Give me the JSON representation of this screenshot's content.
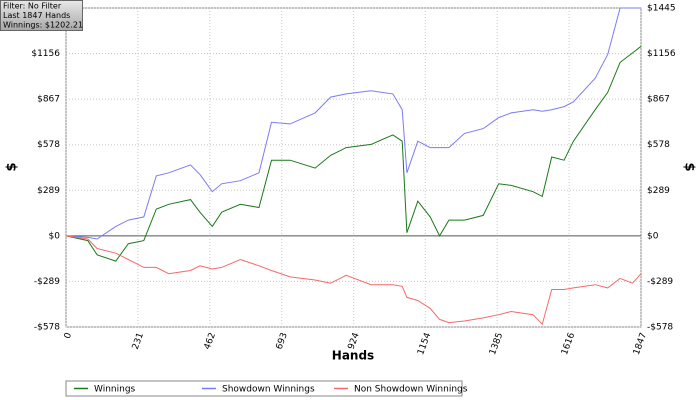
{
  "chart_data": {
    "type": "line",
    "info_box": [
      "Filter: No Filter",
      "Last  1847 Hands",
      "Winnings: $1202.21"
    ],
    "xlabel": "Hands",
    "ylabel": "$",
    "x": [
      0,
      70,
      100,
      160,
      200,
      250,
      290,
      330,
      400,
      430,
      470,
      500,
      560,
      620,
      660,
      720,
      800,
      850,
      900,
      980,
      1050,
      1080,
      1095,
      1130,
      1170,
      1200,
      1230,
      1280,
      1340,
      1390,
      1430,
      1500,
      1530,
      1560,
      1600,
      1630,
      1700,
      1740,
      1780,
      1820,
      1847
    ],
    "series": [
      {
        "name": "Winnings",
        "color": "#1a7a1a",
        "values": [
          0,
          -30,
          -120,
          -160,
          -50,
          -30,
          170,
          200,
          230,
          150,
          60,
          150,
          200,
          180,
          480,
          480,
          430,
          510,
          560,
          580,
          640,
          600,
          20,
          220,
          120,
          0,
          100,
          100,
          130,
          330,
          320,
          280,
          250,
          500,
          480,
          600,
          800,
          910,
          1100,
          1160,
          1202
        ]
      },
      {
        "name": "Showdown Winnings",
        "color": "#7b7bf5",
        "values": [
          0,
          -10,
          -20,
          60,
          100,
          120,
          380,
          400,
          450,
          390,
          280,
          330,
          350,
          400,
          720,
          710,
          780,
          880,
          900,
          920,
          900,
          800,
          400,
          600,
          560,
          560,
          560,
          650,
          680,
          750,
          780,
          800,
          790,
          800,
          820,
          850,
          1000,
          1150,
          1445,
          1445,
          1445
        ]
      },
      {
        "name": "Non Showdown Winnings",
        "color": "#f56a6a",
        "values": [
          0,
          -20,
          -80,
          -110,
          -150,
          -200,
          -200,
          -240,
          -220,
          -190,
          -210,
          -200,
          -150,
          -190,
          -220,
          -260,
          -280,
          -300,
          -250,
          -310,
          -310,
          -320,
          -390,
          -410,
          -460,
          -530,
          -550,
          -540,
          -520,
          -500,
          -480,
          -500,
          -560,
          -340,
          -340,
          -330,
          -310,
          -330,
          -270,
          -300,
          -240
        ]
      }
    ],
    "xlim": [
      0,
      1847
    ],
    "xticks": [
      0,
      231,
      462,
      693,
      924,
      1154,
      1385,
      1616,
      1847
    ],
    "ylim": [
      -578,
      1445
    ],
    "yticks": [
      {
        "value": -578,
        "label": "-$578"
      },
      {
        "value": -289,
        "label": "-$289"
      },
      {
        "value": 0,
        "label": "$0"
      },
      {
        "value": 289,
        "label": "$289"
      },
      {
        "value": 578,
        "label": "$578"
      },
      {
        "value": 867,
        "label": "$867"
      },
      {
        "value": 1156,
        "label": "$1156"
      },
      {
        "value": 1445,
        "label": "$1445"
      }
    ],
    "grid": true
  }
}
